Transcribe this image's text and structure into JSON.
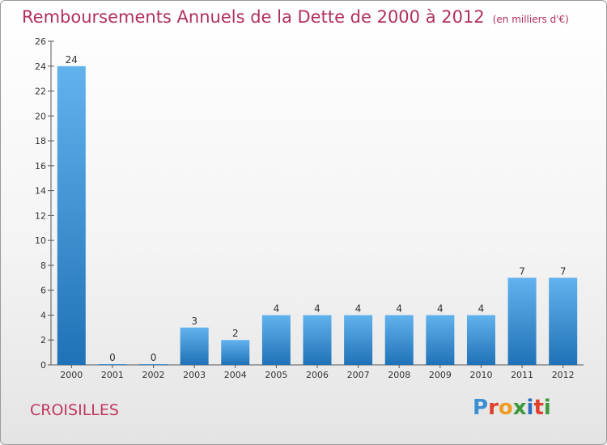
{
  "title": "Remboursements Annuels de la Dette de 2000 à 2012",
  "subtitle": "(en milliers d'€)",
  "place": "CROISILLES",
  "logo": {
    "letters": [
      "P",
      "r",
      "o",
      "x",
      "i",
      "t",
      "i"
    ],
    "colors": [
      "#3c8fd3",
      "#e0402b",
      "#f09a1f",
      "#3b9a3b",
      "#2c6fc0",
      "#e0402b",
      "#3b9a3b"
    ]
  },
  "colors": {
    "bar_light": "#62b2ee",
    "bar_dark": "#1f72b6",
    "title": "#b0305a",
    "axis": "#555555"
  },
  "chart_data": {
    "type": "bar",
    "categories": [
      "2000",
      "2001",
      "2002",
      "2003",
      "2004",
      "2005",
      "2006",
      "2007",
      "2008",
      "2009",
      "2010",
      "2011",
      "2012"
    ],
    "values": [
      24,
      0,
      0,
      3,
      2,
      4,
      4,
      4,
      4,
      4,
      4,
      7,
      7
    ],
    "value_labels": [
      "24",
      "0",
      "0",
      "3",
      "2",
      "4",
      "4",
      "4",
      "4",
      "4",
      "4",
      "7",
      "7"
    ],
    "ylim": [
      0,
      26
    ],
    "yticks": [
      0,
      2,
      4,
      6,
      8,
      10,
      12,
      14,
      16,
      18,
      20,
      22,
      24,
      26
    ],
    "ytick_labels": [
      "0",
      "2",
      "4",
      "6",
      "8",
      "10",
      "12",
      "14",
      "16",
      "18",
      "20",
      "22",
      "24",
      "26"
    ],
    "grid": false,
    "legend": false
  }
}
